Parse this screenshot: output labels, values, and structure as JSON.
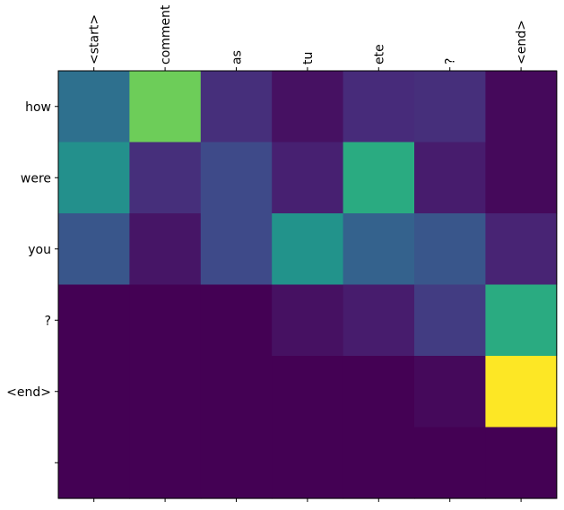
{
  "chart_data": {
    "type": "heatmap",
    "title": "",
    "xlabel": "",
    "ylabel": "",
    "x_labels": [
      "<start>",
      "comment",
      "as",
      "tu",
      "ete",
      "?",
      "<end>"
    ],
    "y_labels": [
      "how",
      "were",
      "you",
      "?",
      "<end>",
      ""
    ],
    "colormap": "viridis",
    "vmin": 0,
    "vmax": 1,
    "values": [
      [
        0.33,
        0.7,
        0.12,
        0.04,
        0.11,
        0.12,
        0.02
      ],
      [
        0.45,
        0.12,
        0.2,
        0.08,
        0.55,
        0.07,
        0.02
      ],
      [
        0.24,
        0.05,
        0.2,
        0.46,
        0.28,
        0.24,
        0.09
      ],
      [
        0.0,
        0.0,
        0.0,
        0.04,
        0.07,
        0.16,
        0.55
      ],
      [
        0.0,
        0.0,
        0.0,
        0.0,
        0.0,
        0.02,
        1.0
      ],
      [
        0.0,
        0.0,
        0.0,
        0.0,
        0.0,
        0.0,
        0.0
      ]
    ]
  }
}
